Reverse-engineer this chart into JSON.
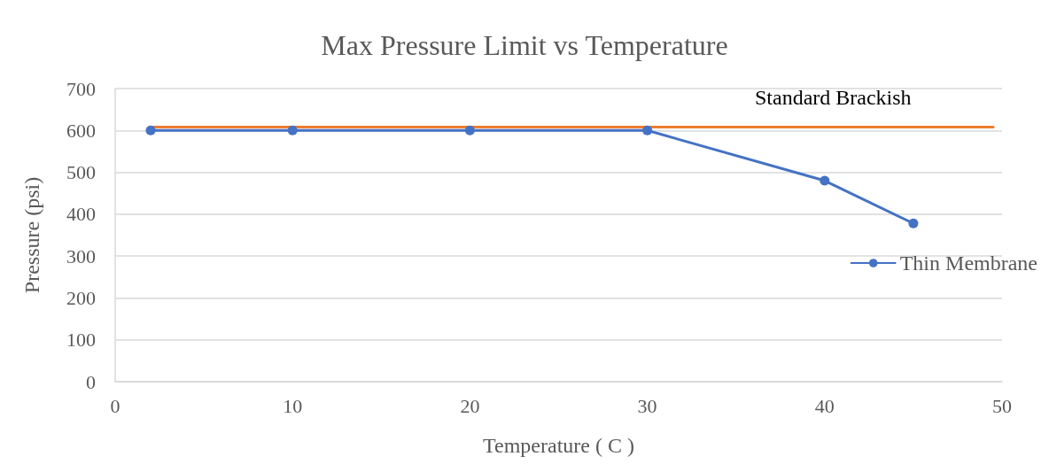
{
  "chart_data": {
    "type": "line",
    "title": "Max Pressure Limit vs Temperature",
    "xlabel": "Temperature ( C )",
    "ylabel": "Pressure (psi)",
    "series": [
      {
        "name": "Thin Membrane",
        "color": "#4472c4",
        "x": [
          2,
          10,
          20,
          30,
          40,
          45
        ],
        "values": [
          600,
          600,
          600,
          600,
          480,
          378
        ],
        "marker": "circle"
      },
      {
        "name": "Standard Brackish",
        "color": "#ed7d31",
        "x": [
          2,
          49.5
        ],
        "values": [
          608,
          608
        ],
        "marker": "none"
      }
    ],
    "xlim": [
      0,
      50
    ],
    "xticks": [
      0,
      10,
      20,
      30,
      40,
      50
    ],
    "ylim": [
      0,
      700
    ],
    "yticks": [
      0,
      100,
      200,
      300,
      400,
      500,
      600,
      700
    ],
    "grid": "y",
    "legend": "right"
  }
}
